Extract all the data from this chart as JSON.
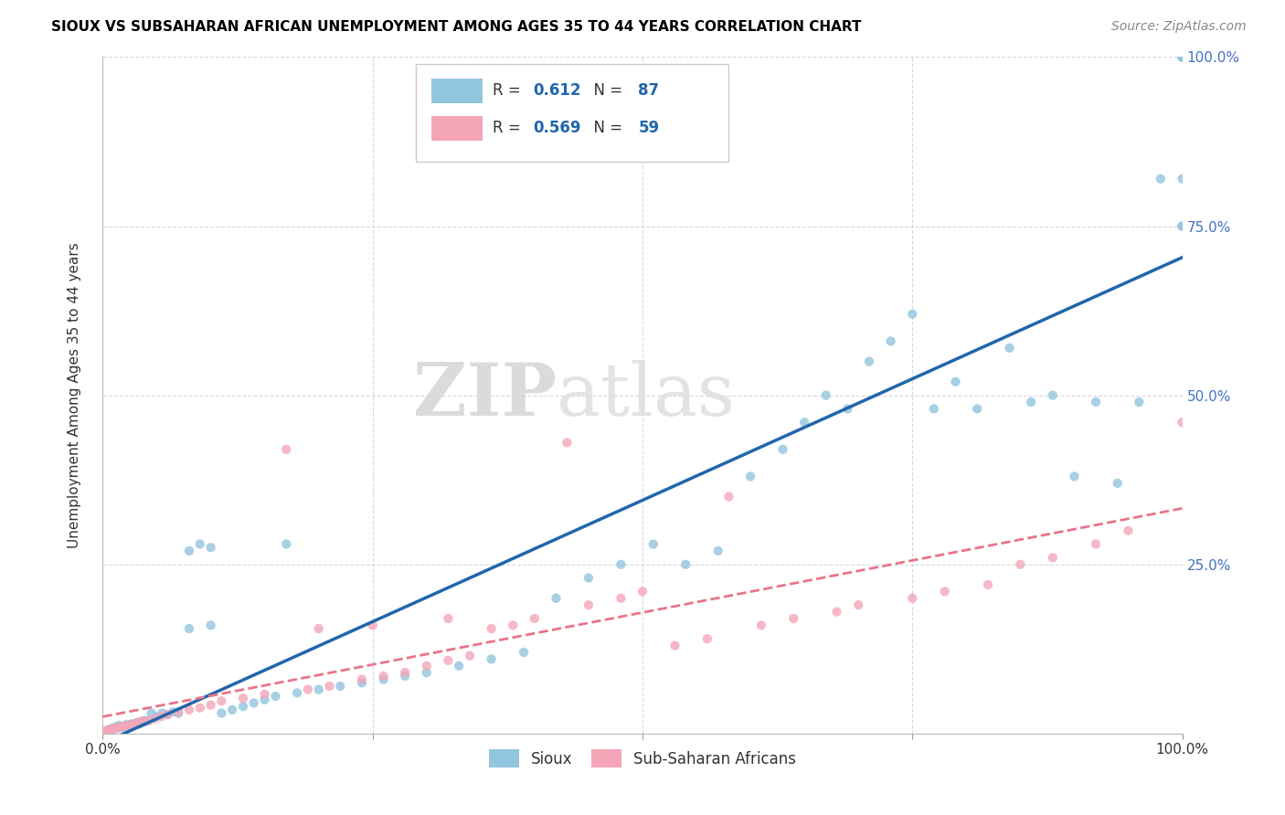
{
  "title": "SIOUX VS SUBSAHARAN AFRICAN UNEMPLOYMENT AMONG AGES 35 TO 44 YEARS CORRELATION CHART",
  "source": "Source: ZipAtlas.com",
  "ylabel": "Unemployment Among Ages 35 to 44 years",
  "xlim": [
    0.0,
    1.0
  ],
  "ylim": [
    0.0,
    1.0
  ],
  "xticks": [
    0.0,
    0.25,
    0.5,
    0.75,
    1.0
  ],
  "yticks": [
    0.0,
    0.25,
    0.5,
    0.75,
    1.0
  ],
  "xticklabels_left": "0.0%",
  "xticklabels_right": "100.0%",
  "yticklabels": [
    "25.0%",
    "50.0%",
    "75.0%",
    "100.0%"
  ],
  "sioux_color": "#92C5DE",
  "subsaharan_color": "#F4A6B8",
  "sioux_line_color": "#2166AC",
  "subsaharan_line_color": "#E8748A",
  "sioux_R": 0.612,
  "sioux_N": 87,
  "subsaharan_R": 0.569,
  "subsaharan_N": 59,
  "legend_label_sioux": "Sioux",
  "legend_label_subsaharan": "Sub-Saharan Africans",
  "watermark_zip": "ZIP",
  "watermark_atlas": "atlas",
  "background_color": "#ffffff",
  "grid_color": "#d0d0d0",
  "sioux_x": [
    0.002,
    0.003,
    0.004,
    0.005,
    0.006,
    0.007,
    0.008,
    0.009,
    0.01,
    0.011,
    0.012,
    0.013,
    0.014,
    0.015,
    0.016,
    0.018,
    0.02,
    0.022,
    0.024,
    0.026,
    0.028,
    0.03,
    0.032,
    0.034,
    0.036,
    0.038,
    0.04,
    0.045,
    0.05,
    0.055,
    0.06,
    0.065,
    0.07,
    0.08,
    0.09,
    0.1,
    0.11,
    0.12,
    0.13,
    0.14,
    0.15,
    0.16,
    0.17,
    0.18,
    0.2,
    0.22,
    0.24,
    0.26,
    0.28,
    0.3,
    0.33,
    0.36,
    0.39,
    0.42,
    0.45,
    0.48,
    0.51,
    0.54,
    0.57,
    0.6,
    0.63,
    0.65,
    0.67,
    0.69,
    0.71,
    0.73,
    0.75,
    0.77,
    0.79,
    0.81,
    0.84,
    0.86,
    0.88,
    0.9,
    0.92,
    0.94,
    0.96,
    0.98,
    1.0,
    1.0,
    1.0,
    1.0,
    1.0,
    1.0,
    1.0,
    0.08,
    0.1
  ],
  "sioux_y": [
    0.002,
    0.003,
    0.005,
    0.004,
    0.006,
    0.005,
    0.007,
    0.006,
    0.008,
    0.007,
    0.009,
    0.01,
    0.008,
    0.012,
    0.01,
    0.009,
    0.011,
    0.013,
    0.012,
    0.014,
    0.013,
    0.015,
    0.016,
    0.014,
    0.018,
    0.017,
    0.019,
    0.03,
    0.025,
    0.03,
    0.028,
    0.032,
    0.03,
    0.27,
    0.28,
    0.275,
    0.03,
    0.035,
    0.04,
    0.045,
    0.05,
    0.055,
    0.28,
    0.06,
    0.065,
    0.07,
    0.075,
    0.08,
    0.085,
    0.09,
    0.1,
    0.11,
    0.12,
    0.2,
    0.23,
    0.25,
    0.28,
    0.25,
    0.27,
    0.38,
    0.42,
    0.46,
    0.5,
    0.48,
    0.55,
    0.58,
    0.62,
    0.48,
    0.52,
    0.48,
    0.57,
    0.49,
    0.5,
    0.38,
    0.49,
    0.37,
    0.49,
    0.82,
    1.0,
    1.0,
    1.0,
    1.0,
    0.75,
    0.82,
    0.75,
    0.155,
    0.16
  ],
  "sub_x": [
    0.002,
    0.004,
    0.006,
    0.008,
    0.01,
    0.012,
    0.015,
    0.018,
    0.02,
    0.023,
    0.026,
    0.03,
    0.034,
    0.038,
    0.042,
    0.048,
    0.054,
    0.06,
    0.07,
    0.08,
    0.09,
    0.1,
    0.11,
    0.13,
    0.15,
    0.17,
    0.19,
    0.21,
    0.24,
    0.26,
    0.28,
    0.3,
    0.32,
    0.34,
    0.36,
    0.38,
    0.4,
    0.43,
    0.45,
    0.48,
    0.5,
    0.53,
    0.56,
    0.58,
    0.61,
    0.64,
    0.68,
    0.7,
    0.75,
    0.78,
    0.82,
    0.85,
    0.88,
    0.92,
    0.95,
    1.0,
    0.2,
    0.25,
    0.32
  ],
  "sub_y": [
    0.002,
    0.004,
    0.005,
    0.006,
    0.007,
    0.008,
    0.009,
    0.01,
    0.011,
    0.012,
    0.013,
    0.015,
    0.017,
    0.019,
    0.018,
    0.022,
    0.025,
    0.028,
    0.032,
    0.035,
    0.038,
    0.042,
    0.048,
    0.052,
    0.058,
    0.42,
    0.065,
    0.07,
    0.08,
    0.085,
    0.09,
    0.1,
    0.108,
    0.115,
    0.155,
    0.16,
    0.17,
    0.43,
    0.19,
    0.2,
    0.21,
    0.13,
    0.14,
    0.35,
    0.16,
    0.17,
    0.18,
    0.19,
    0.2,
    0.21,
    0.22,
    0.25,
    0.26,
    0.28,
    0.3,
    0.46,
    0.155,
    0.16,
    0.17
  ]
}
